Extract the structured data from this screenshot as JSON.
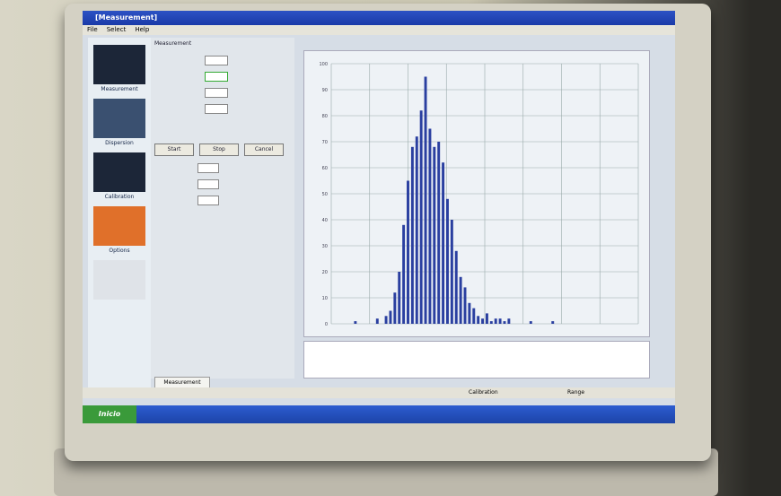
{
  "window": {
    "title": "[Measurement]"
  },
  "menu": [
    "File",
    "Select",
    "Help"
  ],
  "sidebar": [
    "Measurement",
    "Dispersion",
    "Calibration",
    "Options"
  ],
  "panel": {
    "header": "Measurement",
    "buttons": [
      "Start",
      "Stop",
      "Cancel"
    ]
  },
  "tab": "Measurement",
  "status": [
    "Calibration",
    "Range"
  ],
  "taskbar": {
    "start": "Inicio"
  },
  "histogram": {
    "ylim": [
      0,
      100
    ],
    "yticks": [
      0,
      10,
      20,
      30,
      40,
      50,
      60,
      70,
      80,
      90,
      100
    ],
    "color": "#2a3fa0",
    "values": [
      0,
      0,
      0,
      0,
      0,
      1,
      0,
      0,
      0,
      0,
      2,
      0,
      3,
      5,
      12,
      20,
      38,
      55,
      68,
      72,
      82,
      95,
      75,
      68,
      70,
      62,
      48,
      40,
      28,
      18,
      14,
      8,
      6,
      3,
      2,
      4,
      1,
      2,
      2,
      1,
      2,
      0,
      0,
      0,
      0,
      1,
      0,
      0,
      0,
      0,
      1,
      0,
      0,
      0,
      0,
      0,
      0,
      0,
      0,
      0,
      0,
      0,
      0,
      0,
      0,
      0,
      0,
      0,
      0,
      0
    ]
  }
}
